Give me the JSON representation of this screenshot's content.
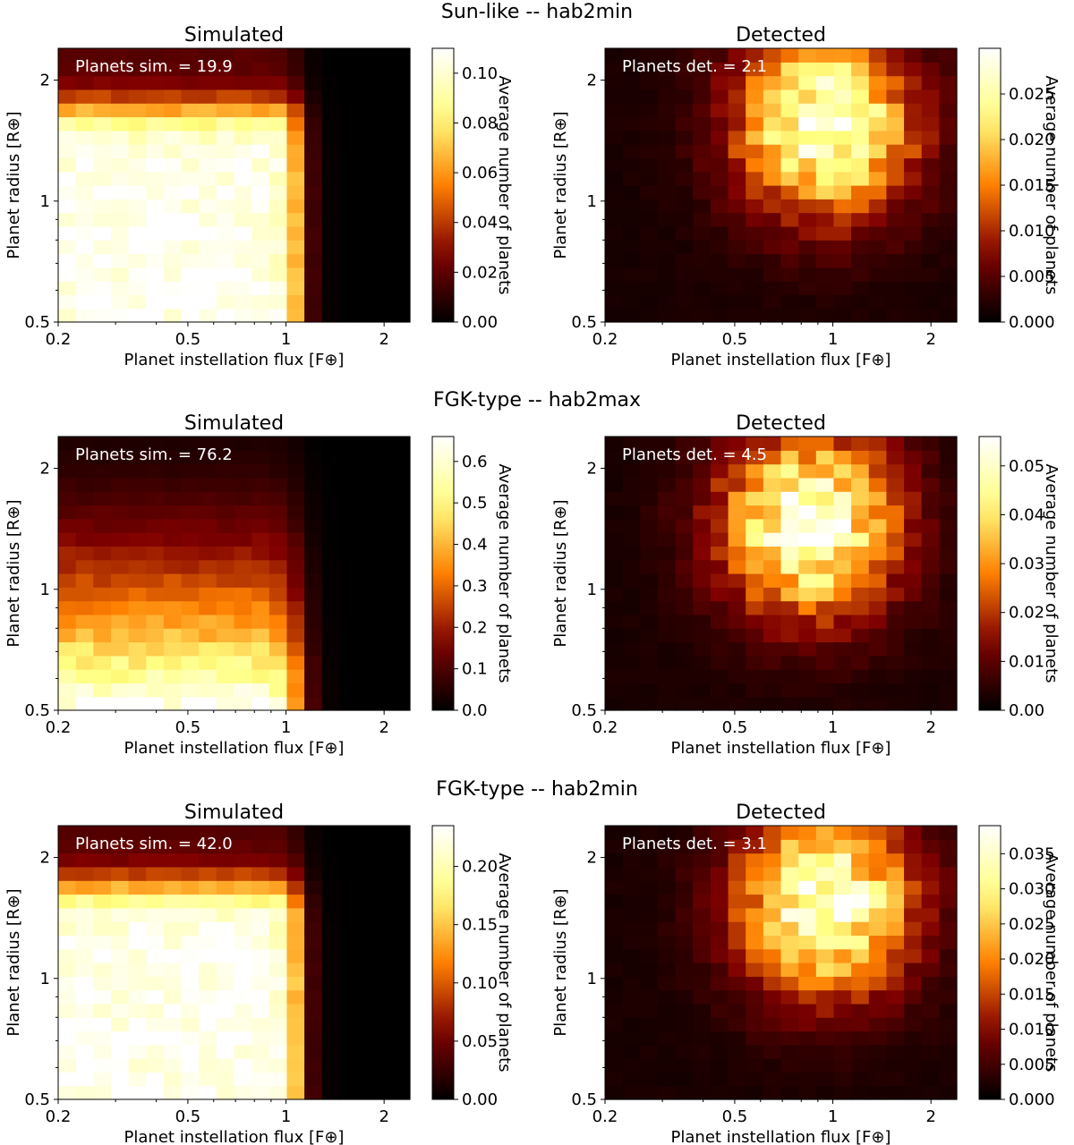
{
  "figure": {
    "rows": [
      {
        "title": "Sun-like -- hab2min",
        "panels": [
          {
            "kind": "simulated",
            "title": "Simulated",
            "annotation": "Planets sim. = 19.9",
            "colorbar": {
              "max": 0.11,
              "ticks": [
                "0.00",
                "0.02",
                "0.04",
                "0.06",
                "0.08",
                "0.10"
              ],
              "label": "Average number of planets"
            }
          },
          {
            "kind": "detected",
            "title": "Detected",
            "annotation": "Planets det. = 2.1",
            "colorbar": {
              "max": 0.03,
              "ticks": [
                "0.000",
                "0.005",
                "0.010",
                "0.015",
                "0.020",
                "0.025"
              ],
              "label": "Average number of planets"
            }
          }
        ]
      },
      {
        "title": "FGK-type -- hab2max",
        "panels": [
          {
            "kind": "simulated",
            "title": "Simulated",
            "annotation": "Planets sim. = 76.2",
            "colorbar": {
              "max": 0.66,
              "ticks": [
                "0.0",
                "0.1",
                "0.2",
                "0.3",
                "0.4",
                "0.5",
                "0.6"
              ],
              "label": "Average number of planets"
            }
          },
          {
            "kind": "detected",
            "title": "Detected",
            "annotation": "Planets det. = 4.5",
            "colorbar": {
              "max": 0.056,
              "ticks": [
                "0.00",
                "0.01",
                "0.02",
                "0.03",
                "0.04",
                "0.05"
              ],
              "label": "Average number of planets"
            }
          }
        ]
      },
      {
        "title": "FGK-type -- hab2min",
        "panels": [
          {
            "kind": "simulated",
            "title": "Simulated",
            "annotation": "Planets sim. = 42.0",
            "colorbar": {
              "max": 0.235,
              "ticks": [
                "0.00",
                "0.05",
                "0.10",
                "0.15",
                "0.20"
              ],
              "label": "Average number of planets"
            }
          },
          {
            "kind": "detected",
            "title": "Detected",
            "annotation": "Planets det. = 3.1",
            "colorbar": {
              "max": 0.039,
              "ticks": [
                "0.000",
                "0.005",
                "0.010",
                "0.015",
                "0.020",
                "0.025",
                "0.030",
                "0.035"
              ],
              "label": "Average number of planets"
            }
          }
        ]
      }
    ]
  },
  "chart_data": {
    "type": "heatmap",
    "grid": {
      "nx": 20,
      "ny": 20,
      "x_scale": "log",
      "y_scale": "log"
    },
    "x_range": [
      0.2,
      2.4
    ],
    "y_range": [
      0.5,
      2.4
    ],
    "x_ticks": [
      "0.2",
      "0.5",
      "1",
      "2"
    ],
    "y_ticks": [
      "0.5",
      "1",
      "2"
    ],
    "xlabel": "Planet instellation flux [F⊕]",
    "ylabel": "Planet radius [R⊕]",
    "colormap": "afmhot",
    "panels": [
      {
        "row": "Sun-like -- hab2min",
        "panel": "Simulated",
        "shape": "simulated",
        "total_planets": 19.9,
        "peak": 0.11,
        "radius_edge": 1.7,
        "flux_edge": 1.1
      },
      {
        "row": "Sun-like -- hab2min",
        "panel": "Detected",
        "shape": "detected",
        "total_planets": 2.1,
        "peak": 0.03,
        "peak_flux": 0.95,
        "peak_radius": 1.55
      },
      {
        "row": "FGK-type -- hab2max",
        "panel": "Simulated",
        "shape": "simulated_gradient",
        "total_planets": 76.2,
        "peak": 0.66,
        "flux_edge": 1.1
      },
      {
        "row": "FGK-type -- hab2max",
        "panel": "Detected",
        "shape": "detected",
        "total_planets": 4.5,
        "peak": 0.056,
        "peak_flux": 0.85,
        "peak_radius": 1.45
      },
      {
        "row": "FGK-type -- hab2min",
        "panel": "Simulated",
        "shape": "simulated",
        "total_planets": 42.0,
        "peak": 0.235,
        "radius_edge": 1.7,
        "flux_edge": 1.1
      },
      {
        "row": "FGK-type -- hab2min",
        "panel": "Detected",
        "shape": "detected",
        "total_planets": 3.1,
        "peak": 0.039,
        "peak_flux": 0.95,
        "peak_radius": 1.55
      }
    ]
  }
}
